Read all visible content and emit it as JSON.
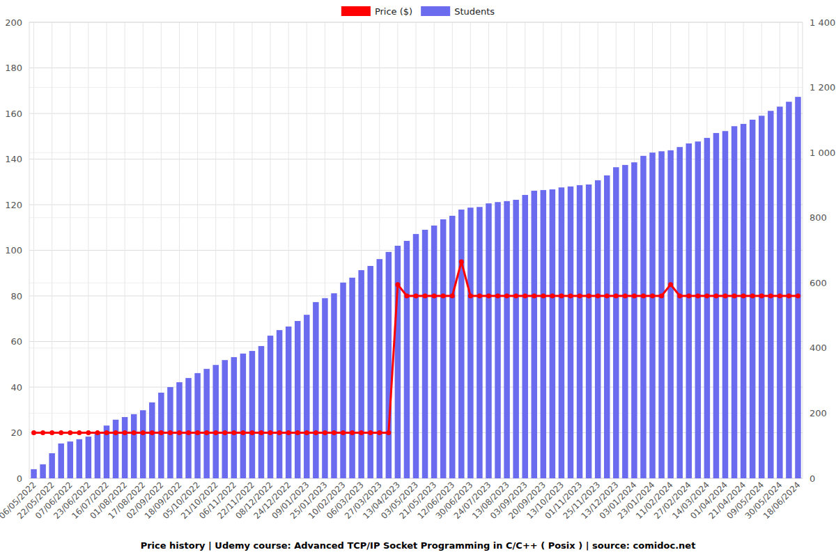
{
  "chart_data": {
    "type": "bar",
    "title": "Price history | Udemy course: Advanced TCP/IP Socket Programming in C/C++ ( Posix ) | source: comidoc.net",
    "categories": [
      "06/05/2022",
      null,
      "22/05/2022",
      null,
      "07/06/2022",
      null,
      "23/06/2022",
      null,
      "16/07/2022",
      null,
      "01/08/2022",
      null,
      "17/08/2022",
      null,
      "02/09/2022",
      null,
      "18/09/2022",
      null,
      "05/10/2022",
      null,
      "21/10/2022",
      null,
      "06/11/2022",
      null,
      "22/11/2022",
      null,
      "08/12/2022",
      null,
      "24/12/2022",
      null,
      "09/01/2023",
      null,
      "25/01/2023",
      null,
      "10/02/2023",
      null,
      "06/03/2023",
      null,
      "27/03/2023",
      null,
      "13/04/2023",
      null,
      "03/05/2023",
      null,
      "21/05/2023",
      null,
      "12/06/2023",
      null,
      "30/06/2023",
      null,
      "24/07/2023",
      null,
      "13/08/2023",
      null,
      "03/09/2023",
      null,
      "20/09/2023",
      null,
      "13/10/2023",
      null,
      "01/11/2023",
      null,
      "25/11/2023",
      null,
      "13/12/2023",
      null,
      "03/01/2024",
      null,
      "23/01/2024",
      null,
      "11/02/2024",
      null,
      "27/02/2024",
      null,
      "14/03/2024",
      null,
      "01/04/2024",
      null,
      "21/04/2024",
      null,
      "09/05/2024",
      null,
      "30/05/2024",
      null,
      "18/06/2024"
    ],
    "series": [
      {
        "name": "Price ($)",
        "type": "line",
        "color": "#ff0000",
        "marker": "circle",
        "axis": "y",
        "values": [
          20,
          20,
          20,
          20,
          20,
          20,
          20,
          20,
          20,
          20,
          20,
          20,
          20,
          20,
          20,
          20,
          20,
          20,
          20,
          20,
          20,
          20,
          20,
          20,
          20,
          20,
          20,
          20,
          20,
          20,
          20,
          20,
          20,
          20,
          20,
          20,
          20,
          20,
          20,
          20,
          85,
          80,
          80,
          80,
          80,
          80,
          80,
          95,
          80,
          80,
          80,
          80,
          80,
          80,
          80,
          80,
          80,
          80,
          80,
          80,
          80,
          80,
          80,
          80,
          80,
          80,
          80,
          80,
          80,
          80,
          85,
          80,
          80,
          80,
          80,
          80,
          80,
          80,
          80,
          80,
          80,
          80,
          80,
          80,
          80
        ]
      },
      {
        "name": "Students",
        "type": "bar",
        "color": "#6b6bef",
        "axis": "y2",
        "values": [
          28,
          43,
          77,
          107,
          113,
          120,
          128,
          141,
          162,
          180,
          188,
          197,
          209,
          233,
          263,
          280,
          295,
          308,
          323,
          336,
          348,
          363,
          372,
          383,
          391,
          406,
          438,
          455,
          466,
          483,
          502,
          541,
          553,
          568,
          601,
          616,
          639,
          652,
          673,
          695,
          714,
          729,
          750,
          763,
          776,
          795,
          806,
          825,
          831,
          833,
          844,
          848,
          851,
          855,
          870,
          883,
          885,
          887,
          893,
          896,
          900,
          902,
          915,
          930,
          955,
          962,
          970,
          990,
          1000,
          1004,
          1007,
          1017,
          1028,
          1034,
          1045,
          1060,
          1066,
          1081,
          1088,
          1101,
          1113,
          1128,
          1141,
          1156,
          1171
        ]
      }
    ],
    "ylim": [
      0,
      200
    ],
    "yticks": [
      0,
      20,
      40,
      60,
      80,
      100,
      120,
      140,
      160,
      180,
      200
    ],
    "y2lim": [
      0,
      1400
    ],
    "y2ticks": [
      0,
      200,
      400,
      600,
      800,
      {
        "value": 1000,
        "label": "1 000"
      },
      {
        "value": 1200,
        "label": "1 200"
      },
      {
        "value": 1400,
        "label": "1 400"
      }
    ],
    "grid": true,
    "legend": "top"
  }
}
